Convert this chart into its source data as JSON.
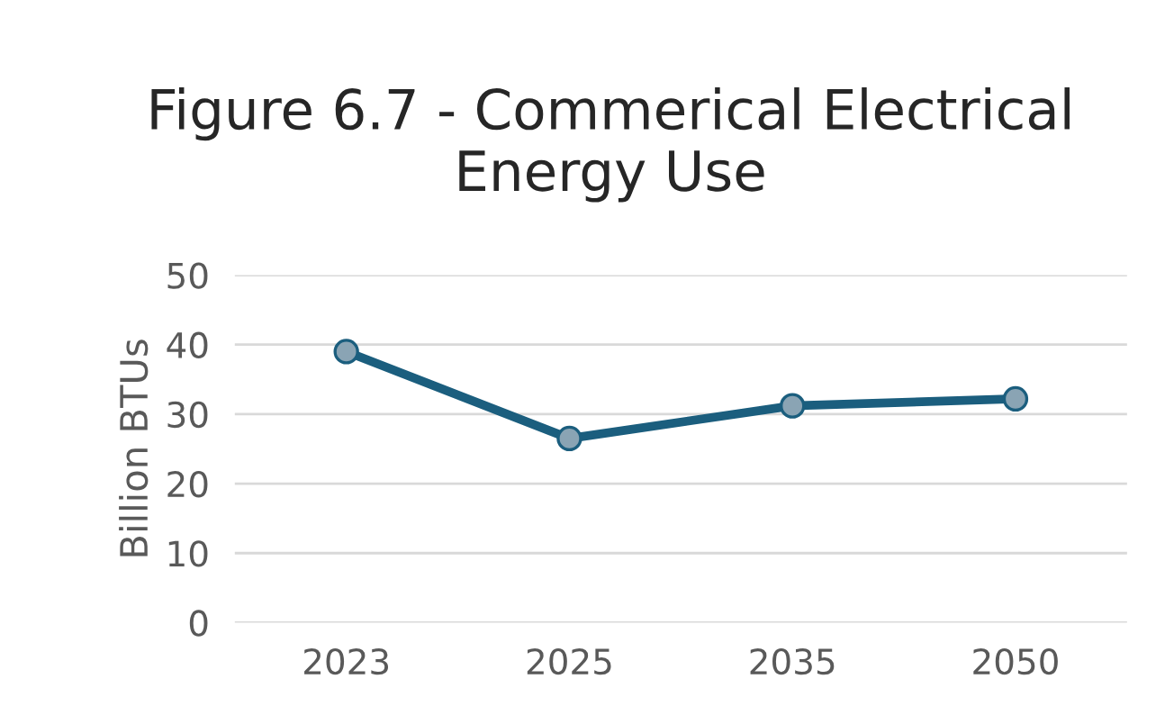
{
  "chart_data": {
    "type": "line",
    "title": "Figure 6.7 - Commerical Electrical Energy Use",
    "ylabel": "Billion BTUs",
    "categories": [
      "2023",
      "2025",
      "2035",
      "2050"
    ],
    "series": [
      {
        "color": "#1b5e7e",
        "values": [
          39,
          26.5,
          31.2,
          32.2
        ]
      }
    ],
    "ylim": [
      0,
      50
    ],
    "yticks": [
      0,
      10,
      20,
      30,
      40,
      50
    ],
    "grid": "y",
    "marker": "circle",
    "line_style": "solid",
    "legend": false
  }
}
